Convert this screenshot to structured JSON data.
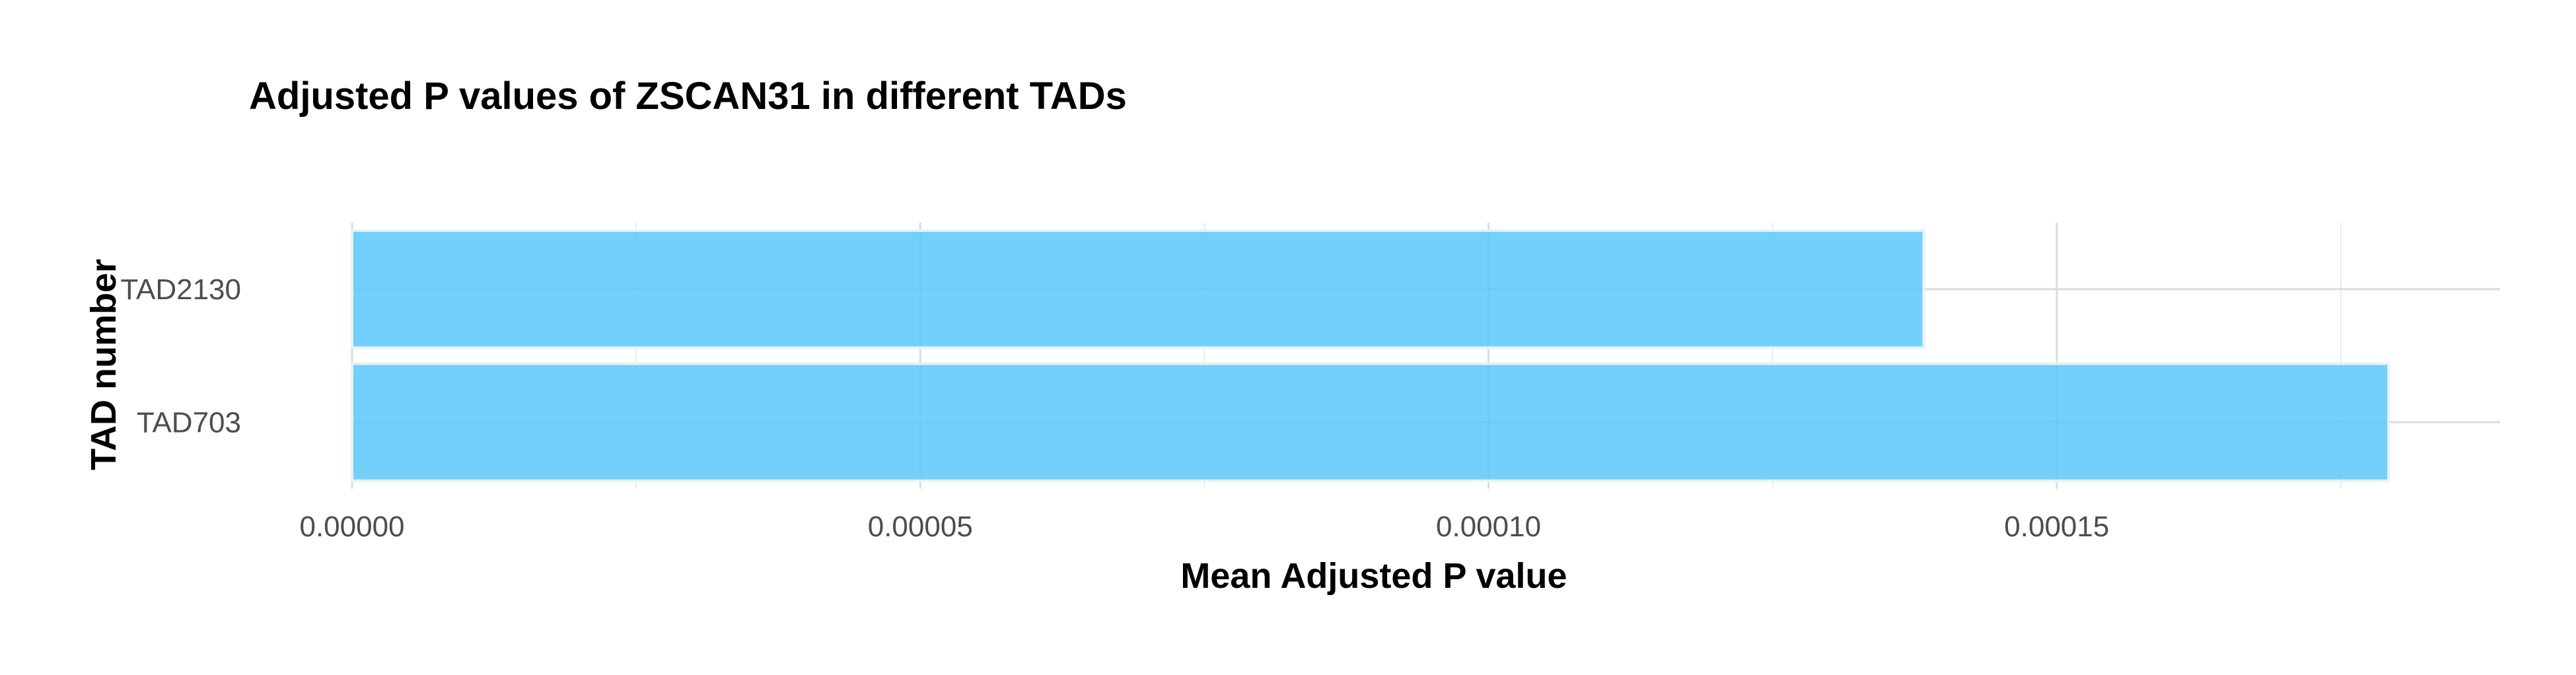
{
  "chart_data": {
    "type": "bar",
    "orientation": "horizontal",
    "title": "Adjusted P values of ZSCAN31 in different TADs",
    "xlabel": "Mean Adjusted P value",
    "ylabel": "TAD number",
    "categories": [
      "TAD2130",
      "TAD703"
    ],
    "values": [
      0.0001383,
      0.0001792
    ],
    "xlim": [
      0,
      0.000188
    ],
    "xticks": [
      0,
      5e-05,
      0.0001,
      0.00015
    ],
    "xtick_labels": [
      "0.00000",
      "0.00005",
      "0.00010",
      "0.00015"
    ],
    "grid": true,
    "legend": "none",
    "bar_color": "#5ac8fa",
    "bar_opacity": 0.85
  }
}
